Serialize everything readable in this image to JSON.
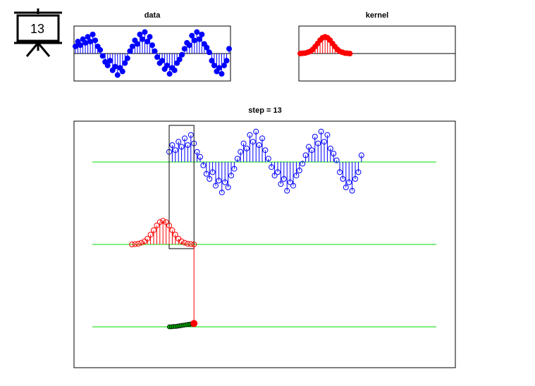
{
  "icon": {
    "step": 13
  },
  "chart_data": [
    {
      "type": "stem",
      "title": "data",
      "color": "#0000ff",
      "filled": true,
      "ylim": [
        -1.15,
        1.15
      ],
      "values": [
        0.3,
        0.5,
        0.35,
        0.6,
        0.45,
        0.7,
        0.5,
        0.8,
        0.55,
        0.3,
        0.15,
        -0.1,
        -0.35,
        -0.5,
        -0.3,
        -0.7,
        -0.55,
        -0.9,
        -0.6,
        -0.75,
        -0.4,
        -0.2,
        0.1,
        0.3,
        0.55,
        0.4,
        0.8,
        0.6,
        0.9,
        0.5,
        0.7,
        0.35,
        0.1,
        -0.15,
        -0.4,
        -0.3,
        -0.65,
        -0.5,
        -0.85,
        -0.6,
        -0.7,
        -0.4,
        -0.25,
        -0.05,
        0.2,
        0.45,
        0.35,
        0.75,
        0.55,
        0.9,
        0.6,
        0.8,
        0.4,
        0.25,
        0.05,
        -0.3,
        -0.5,
        -0.75,
        -0.6,
        -0.85,
        -0.5,
        -0.3,
        0.2
      ]
    },
    {
      "type": "stem",
      "title": "kernel",
      "color": "#ff0000",
      "filled": true,
      "ylim": [
        -1.15,
        1.15
      ],
      "values": [
        0.0,
        0.01,
        0.02,
        0.05,
        0.09,
        0.17,
        0.29,
        0.42,
        0.56,
        0.66,
        0.7,
        0.66,
        0.56,
        0.42,
        0.29,
        0.17,
        0.09,
        0.05,
        0.02,
        0.01,
        0.0
      ]
    },
    {
      "type": "convolution",
      "title": "step = 13",
      "color": "#00aa00",
      "baseline_color": "#00dd00",
      "values": [
        0.0,
        0.0,
        0.01,
        0.01,
        0.02,
        0.03,
        0.04,
        0.05,
        0.06,
        0.07,
        0.08,
        0.09,
        0.1
      ]
    }
  ]
}
